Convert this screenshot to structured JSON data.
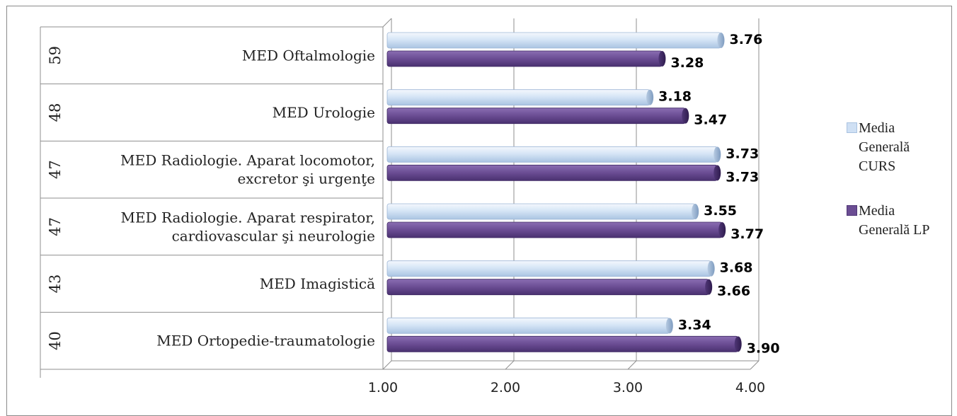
{
  "chart_data": {
    "type": "bar",
    "orientation": "horizontal",
    "title": "",
    "categories": [
      {
        "count": "59",
        "name": "MED Oftalmologie"
      },
      {
        "count": "48",
        "name": "MED Urologie"
      },
      {
        "count": "47",
        "name": "MED Radiologie. Aparat locomotor, excretor şi urgenţe"
      },
      {
        "count": "47",
        "name": "MED Radiologie. Aparat respirator, cardiovascular şi neurologie"
      },
      {
        "count": "43",
        "name": "MED Imagistică"
      },
      {
        "count": "40",
        "name": "MED Ortopedie-traumatologie"
      }
    ],
    "category_lines": [
      [
        "MED Oftalmologie"
      ],
      [
        "MED Urologie"
      ],
      [
        "MED Radiologie. Aparat locomotor,",
        "excretor şi urgenţe"
      ],
      [
        "MED Radiologie. Aparat respirator,",
        "cardiovascular şi neurologie"
      ],
      [
        "MED Imagistică"
      ],
      [
        "MED Ortopedie-traumatologie"
      ]
    ],
    "series": [
      {
        "name": "Media Generală CURS",
        "color": "#cfe0f4",
        "values": [
          3.76,
          3.18,
          3.73,
          3.55,
          3.68,
          3.34
        ],
        "labels": [
          "3.76",
          "3.18",
          "3.73",
          "3.55",
          "3.68",
          "3.34"
        ]
      },
      {
        "name": "Media Generală LP",
        "color": "#6b4d93",
        "values": [
          3.28,
          3.47,
          3.73,
          3.77,
          3.66,
          3.9
        ],
        "labels": [
          "3.28",
          "3.47",
          "3.73",
          "3.77",
          "3.66",
          "3.90"
        ]
      }
    ],
    "xlim": [
      1.0,
      4.0
    ],
    "xticks": [
      "1.00",
      "2.00",
      "3.00",
      "4.00"
    ],
    "grid": true,
    "legend_position": "right"
  },
  "legend": {
    "items": [
      {
        "lines": [
          "Media",
          "Generală",
          "CURS"
        ],
        "color": "#cfe0f4"
      },
      {
        "lines": [
          "Media",
          "Generală LP"
        ],
        "color": "#6b4d93"
      }
    ]
  }
}
